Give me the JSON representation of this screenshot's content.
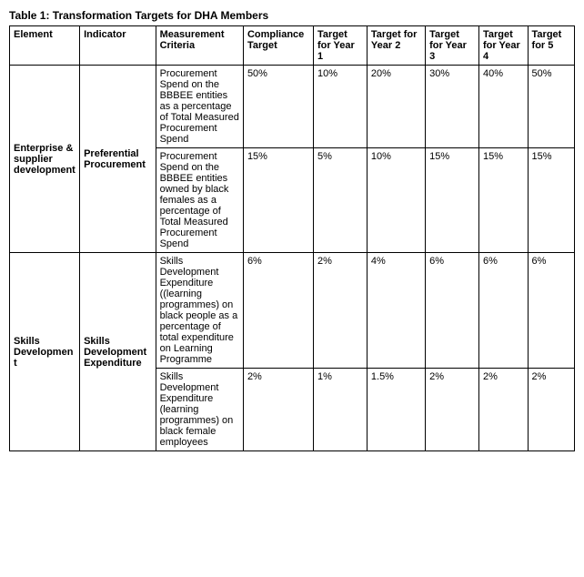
{
  "title": "Table 1: Transformation Targets for DHA Members",
  "headers": {
    "element": "Element",
    "indicator": "Indicator",
    "criteria": "Measurement Criteria",
    "compliance": "Compliance Target",
    "year1": "Target for Year 1",
    "year2": "Target for Year 2",
    "year3": "Target for Year 3",
    "year4": "Target for Year 4",
    "year5": "Target for 5"
  },
  "groups": [
    {
      "element": "Enterprise & supplier development",
      "indicator": "Preferential Procurement",
      "rows": [
        {
          "criteria": "Procurement Spend on the BBBEE entities as a percentage of Total Measured Procurement Spend",
          "compliance": "50%",
          "y1": "10%",
          "y2": "20%",
          "y3": "30%",
          "y4": "40%",
          "y5": "50%"
        },
        {
          "criteria": "Procurement Spend on the BBBEE entities owned by black females as a percentage of Total Measured Procurement Spend",
          "compliance": "15%",
          "y1": "5%",
          "y2": "10%",
          "y3": "15%",
          "y4": "15%",
          "y5": "15%"
        }
      ]
    },
    {
      "element": "Skills Development",
      "indicator": "Skills Development Expenditure",
      "rows": [
        {
          "criteria": "Skills Development Expenditure ((learning programmes) on black people as a percentage of total expenditure on Learning Programme",
          "compliance": "6%",
          "y1": "2%",
          "y2": "4%",
          "y3": "6%",
          "y4": "6%",
          "y5": "6%"
        },
        {
          "criteria": "Skills Development Expenditure (learning programmes) on black female employees",
          "compliance": "2%",
          "y1": "1%",
          "y2": "1.5%",
          "y3": "2%",
          "y4": "2%",
          "y5": "2%"
        }
      ]
    }
  ]
}
